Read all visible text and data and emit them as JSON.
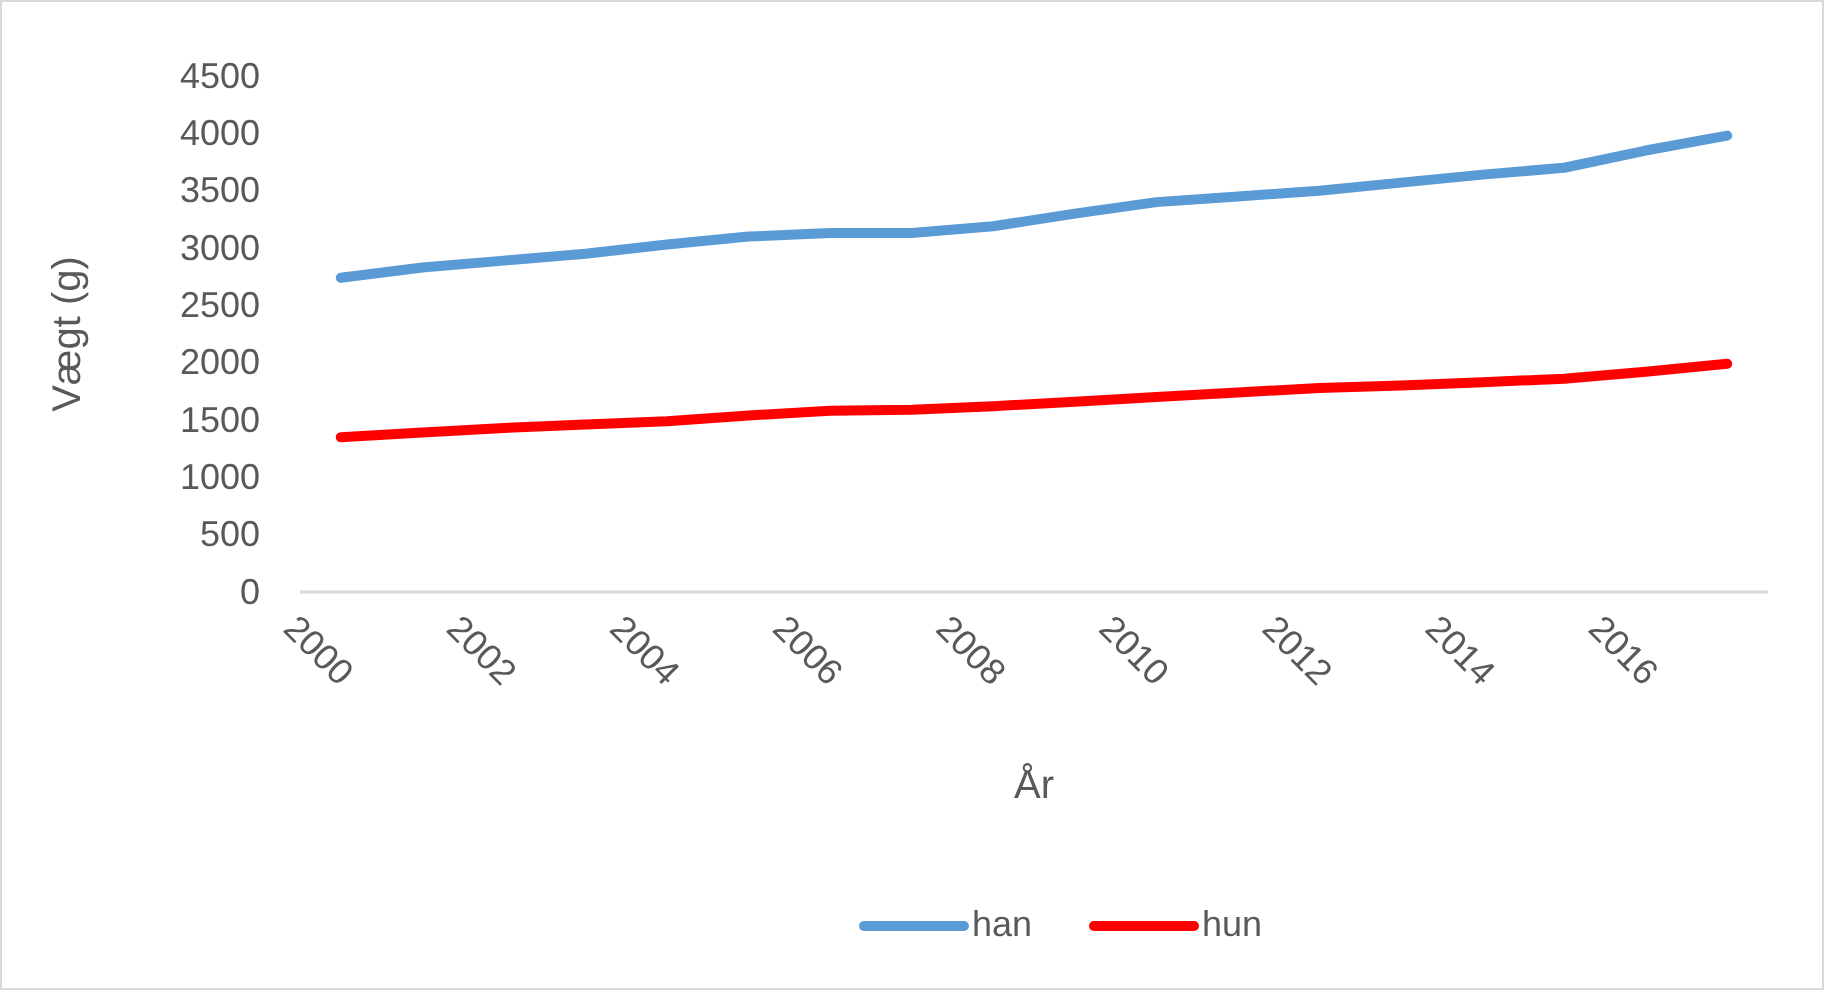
{
  "chart_data": {
    "type": "line",
    "xlabel": "År",
    "ylabel": "Vægt  (g)",
    "categories": [
      "2000",
      null,
      "2002",
      null,
      "2004",
      null,
      "2006",
      null,
      "2008",
      null,
      "2010",
      null,
      "2012",
      null,
      "2014",
      null,
      "2016",
      null
    ],
    "series": [
      {
        "name": "han",
        "color": "#5b9bd5",
        "values": [
          2740,
          2830,
          2890,
          2950,
          3030,
          3100,
          3130,
          3130,
          3190,
          3300,
          3400,
          3450,
          3500,
          3570,
          3640,
          3700,
          3850,
          3980
        ]
      },
      {
        "name": "hun",
        "color": "#ff0000",
        "values": [
          1350,
          1390,
          1430,
          1460,
          1490,
          1540,
          1580,
          1590,
          1620,
          1660,
          1700,
          1740,
          1780,
          1800,
          1830,
          1860,
          1920,
          1990
        ]
      }
    ],
    "ylim": [
      0,
      4500
    ],
    "yticks": [
      0,
      500,
      1000,
      1500,
      2000,
      2500,
      3000,
      3500,
      4000,
      4500
    ],
    "grid": false,
    "legend": "bottom",
    "marker": "none",
    "line_style": "solid"
  }
}
